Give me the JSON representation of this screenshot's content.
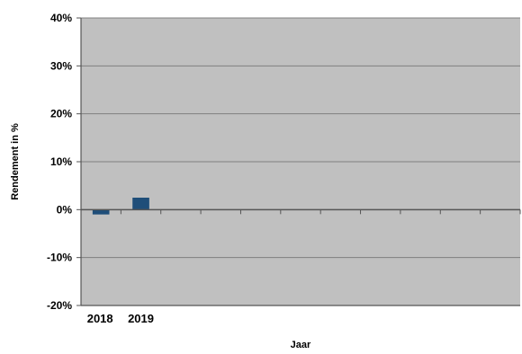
{
  "chart_data": {
    "type": "bar",
    "categories": [
      "2018",
      "2019"
    ],
    "series": [
      {
        "values": [
          -1.0,
          2.5
        ]
      }
    ],
    "slot_count": 11,
    "xlabel": "Jaar",
    "ylabel": "Rendement in %",
    "ylim": [
      -20,
      40
    ],
    "yticks": [
      40,
      30,
      20,
      10,
      0,
      -10,
      -20
    ],
    "ytick_labels": [
      "40%",
      "30%",
      "20%",
      "10%",
      "0%",
      "-10%",
      "-20%"
    ],
    "grid": true,
    "legend": "none",
    "colors": {
      "plot_background": "#c0c0c0",
      "bar": "#1f4e79",
      "gridline": "#7f7f7f",
      "axis": "#555555"
    }
  }
}
